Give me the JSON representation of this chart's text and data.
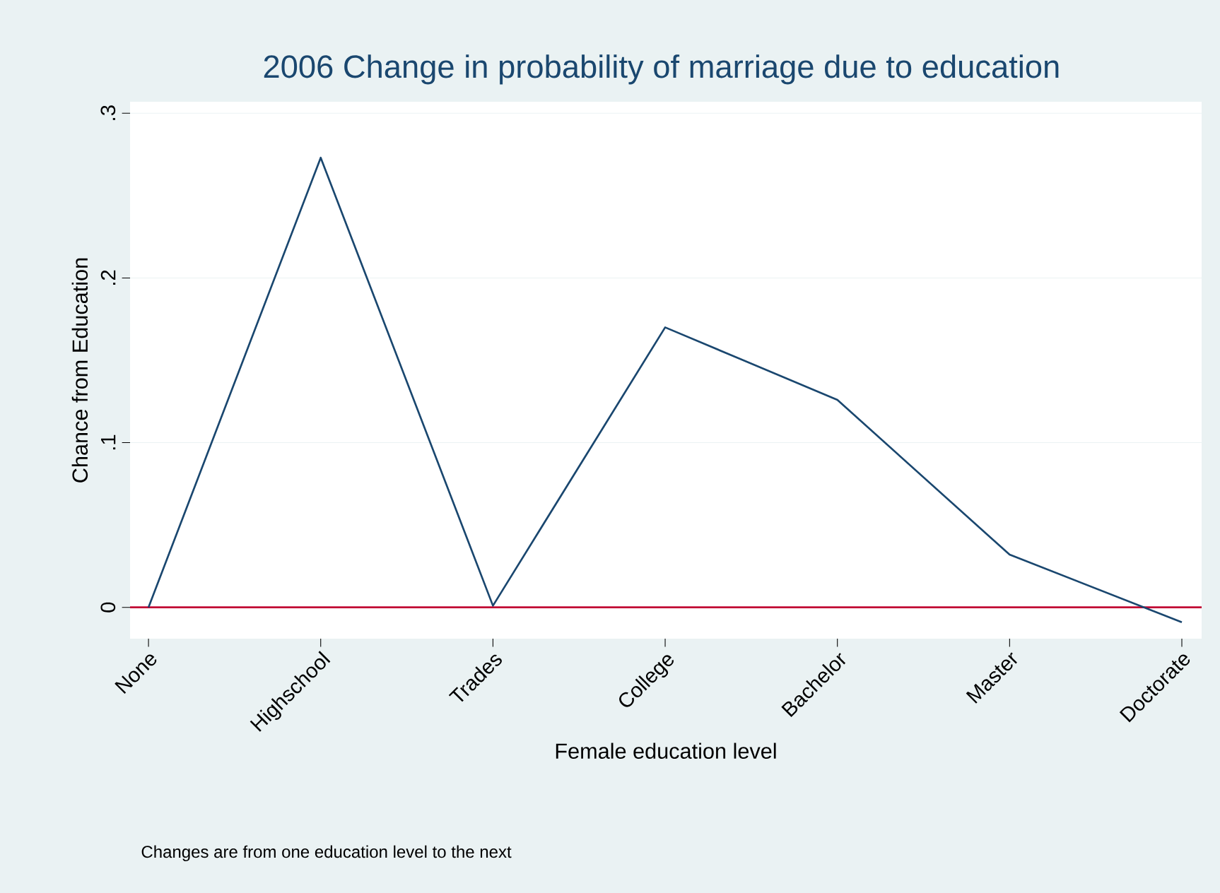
{
  "chart_data": {
    "type": "line",
    "title": "2006 Change in probability of marriage due to education",
    "xlabel": "Female education level",
    "ylabel": "Chance from Education",
    "categories": [
      "None",
      "Highschool",
      "Trades",
      "College",
      "Bachelor",
      "Master",
      "Doctorate"
    ],
    "series": [
      {
        "color": "#1a476f",
        "values": [
          0,
          0.273,
          0.001,
          0.17,
          0.126,
          0.032,
          -0.009
        ]
      }
    ],
    "ylim": [
      -0.019,
      0.307
    ],
    "yticks": [
      {
        "value": 0,
        "label": "0"
      },
      {
        "value": 0.1,
        "label": ".1"
      },
      {
        "value": 0.2,
        "label": ".2"
      },
      {
        "value": 0.3,
        "label": ".3"
      }
    ],
    "grid": "y",
    "marker": "none",
    "line_style": "solid",
    "ref_lines": [
      {
        "axis": "y",
        "value": 0,
        "color": "#c10534"
      }
    ],
    "annotations": [
      "Changes are from one education level to the next"
    ]
  }
}
